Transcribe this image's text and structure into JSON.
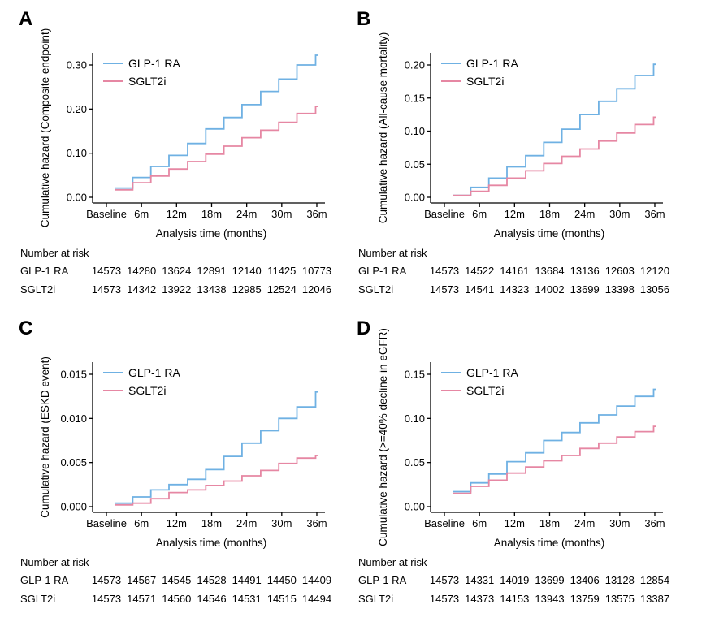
{
  "figure": {
    "background": "#ffffff",
    "text_color": "#000000",
    "axis_color": "#000000"
  },
  "panels": [
    {
      "label": "A",
      "chart_data": {
        "type": "line",
        "subtype": "cumulative-hazard-step",
        "title": "",
        "xlabel": "Analysis time (months)",
        "ylabel": "Cumulative hazard (Composite endpoint)",
        "x_tick_labels": [
          "Baseline",
          "6m",
          "12m",
          "18m",
          "24m",
          "30m",
          "36m"
        ],
        "x_tick_months": [
          0,
          6,
          12,
          18,
          24,
          30,
          36
        ],
        "y_tick_labels": [
          "0.00",
          "0.10",
          "0.20",
          "0.30"
        ],
        "y_tick_values": [
          0,
          0.1,
          0.2,
          0.3
        ],
        "ylim": [
          0,
          0.33
        ],
        "grid": false,
        "legend_position": "top-left",
        "start_month": 1.5,
        "riser_months": [
          4.5,
          7.6,
          10.7,
          13.9,
          17.0,
          20.1,
          23.2,
          26.4,
          29.5,
          32.6,
          35.8
        ],
        "end_month": 36.2,
        "series": [
          {
            "name": "GLP-1 RA",
            "color": "#6fb1e3",
            "values": [
              0.021,
              0.045,
              0.07,
              0.095,
              0.122,
              0.155,
              0.181,
              0.21,
              0.24,
              0.268,
              0.3,
              0.322
            ]
          },
          {
            "name": "SGLT2i",
            "color": "#e687a3",
            "values": [
              0.017,
              0.033,
              0.048,
              0.064,
              0.081,
              0.098,
              0.116,
              0.135,
              0.152,
              0.17,
              0.19,
              0.206
            ]
          }
        ]
      },
      "risk": {
        "title": "Number at risk",
        "rows": [
          {
            "label": "GLP-1 RA",
            "values": [
              14573,
              14280,
              13624,
              12891,
              12140,
              11425,
              10773
            ]
          },
          {
            "label": "SGLT2i",
            "values": [
              14573,
              14342,
              13922,
              13438,
              12985,
              12524,
              12046
            ]
          }
        ]
      }
    },
    {
      "label": "B",
      "chart_data": {
        "type": "line",
        "subtype": "cumulative-hazard-step",
        "title": "",
        "xlabel": "Analysis time (months)",
        "ylabel": "Cumulative hazard (All-cause mortality)",
        "x_tick_labels": [
          "Baseline",
          "6m",
          "12m",
          "18m",
          "24m",
          "30m",
          "36m"
        ],
        "x_tick_months": [
          0,
          6,
          12,
          18,
          24,
          30,
          36
        ],
        "y_tick_labels": [
          "0.00",
          "0.05",
          "0.10",
          "0.15",
          "0.20"
        ],
        "y_tick_values": [
          0,
          0.05,
          0.1,
          0.15,
          0.2
        ],
        "ylim": [
          0,
          0.21
        ],
        "grid": false,
        "legend_position": "top-left",
        "start_month": 1.5,
        "riser_months": [
          4.5,
          7.6,
          10.7,
          13.9,
          17.0,
          20.1,
          23.2,
          26.4,
          29.5,
          32.6,
          35.8
        ],
        "end_month": 36.2,
        "series": [
          {
            "name": "GLP-1 RA",
            "color": "#6fb1e3",
            "values": [
              0.003,
              0.015,
              0.029,
              0.046,
              0.063,
              0.083,
              0.103,
              0.125,
              0.145,
              0.164,
              0.184,
              0.201
            ]
          },
          {
            "name": "SGLT2i",
            "color": "#e687a3",
            "values": [
              0.003,
              0.009,
              0.018,
              0.029,
              0.04,
              0.051,
              0.062,
              0.073,
              0.085,
              0.097,
              0.11,
              0.121
            ]
          }
        ]
      },
      "risk": {
        "title": "Number at risk",
        "rows": [
          {
            "label": "GLP-1 RA",
            "values": [
              14573,
              14522,
              14161,
              13684,
              13136,
              12603,
              12120
            ]
          },
          {
            "label": "SGLT2i",
            "values": [
              14573,
              14541,
              14323,
              14002,
              13699,
              13398,
              13056
            ]
          }
        ]
      }
    },
    {
      "label": "C",
      "chart_data": {
        "type": "line",
        "subtype": "cumulative-hazard-step",
        "title": "",
        "xlabel": "Analysis time (months)",
        "ylabel": "Cumulative hazard (ESKD event)",
        "x_tick_labels": [
          "Baseline",
          "6m",
          "12m",
          "18m",
          "24m",
          "30m",
          "36m"
        ],
        "x_tick_months": [
          0,
          6,
          12,
          18,
          24,
          30,
          36
        ],
        "y_tick_labels": [
          "0.000",
          "0.005",
          "0.010",
          "0.015"
        ],
        "y_tick_values": [
          0,
          0.005,
          0.01,
          0.015
        ],
        "ylim": [
          0,
          0.0158
        ],
        "grid": false,
        "legend_position": "top-left",
        "start_month": 1.5,
        "riser_months": [
          4.5,
          7.6,
          10.7,
          13.9,
          17.0,
          20.1,
          23.2,
          26.4,
          29.5,
          32.6,
          35.8
        ],
        "end_month": 36.2,
        "series": [
          {
            "name": "GLP-1 RA",
            "color": "#6fb1e3",
            "values": [
              0.0004,
              0.0011,
              0.0019,
              0.0025,
              0.0031,
              0.0042,
              0.0057,
              0.0072,
              0.0086,
              0.01,
              0.0113,
              0.013
            ]
          },
          {
            "name": "SGLT2i",
            "color": "#e687a3",
            "values": [
              0.0002,
              0.0004,
              0.0009,
              0.0016,
              0.0019,
              0.0024,
              0.0029,
              0.0035,
              0.0041,
              0.0049,
              0.0055,
              0.0058
            ]
          }
        ]
      },
      "risk": {
        "title": "Number at risk",
        "rows": [
          {
            "label": "GLP-1 RA",
            "values": [
              14573,
              14567,
              14545,
              14528,
              14491,
              14450,
              14409
            ]
          },
          {
            "label": "SGLT2i",
            "values": [
              14573,
              14571,
              14560,
              14546,
              14531,
              14515,
              14494
            ]
          }
        ]
      }
    },
    {
      "label": "D",
      "chart_data": {
        "type": "line",
        "subtype": "cumulative-hazard-step",
        "title": "",
        "xlabel": "Analysis time (months)",
        "ylabel": "Cumulative hazard (>=40% decline in eGFR)",
        "x_tick_labels": [
          "Baseline",
          "6m",
          "12m",
          "18m",
          "24m",
          "30m",
          "36m"
        ],
        "x_tick_months": [
          0,
          6,
          12,
          18,
          24,
          30,
          36
        ],
        "y_tick_labels": [
          "0.00",
          "0.05",
          "0.10",
          "0.15"
        ],
        "y_tick_values": [
          0,
          0.05,
          0.1,
          0.15
        ],
        "ylim": [
          0,
          0.158
        ],
        "grid": false,
        "legend_position": "top-left",
        "start_month": 1.5,
        "riser_months": [
          4.5,
          7.6,
          10.7,
          13.9,
          17.0,
          20.1,
          23.2,
          26.4,
          29.5,
          32.6,
          35.8
        ],
        "end_month": 36.2,
        "series": [
          {
            "name": "GLP-1 RA",
            "color": "#6fb1e3",
            "values": [
              0.017,
              0.027,
              0.037,
              0.051,
              0.061,
              0.075,
              0.084,
              0.095,
              0.104,
              0.114,
              0.125,
              0.133
            ]
          },
          {
            "name": "SGLT2i",
            "color": "#e687a3",
            "values": [
              0.015,
              0.023,
              0.03,
              0.038,
              0.045,
              0.052,
              0.058,
              0.066,
              0.072,
              0.079,
              0.085,
              0.091
            ]
          }
        ]
      },
      "risk": {
        "title": "Number at risk",
        "rows": [
          {
            "label": "GLP-1 RA",
            "values": [
              14573,
              14331,
              14019,
              13699,
              13406,
              13128,
              12854
            ]
          },
          {
            "label": "SGLT2i",
            "values": [
              14573,
              14373,
              14153,
              13943,
              13759,
              13575,
              13387
            ]
          }
        ]
      }
    }
  ]
}
